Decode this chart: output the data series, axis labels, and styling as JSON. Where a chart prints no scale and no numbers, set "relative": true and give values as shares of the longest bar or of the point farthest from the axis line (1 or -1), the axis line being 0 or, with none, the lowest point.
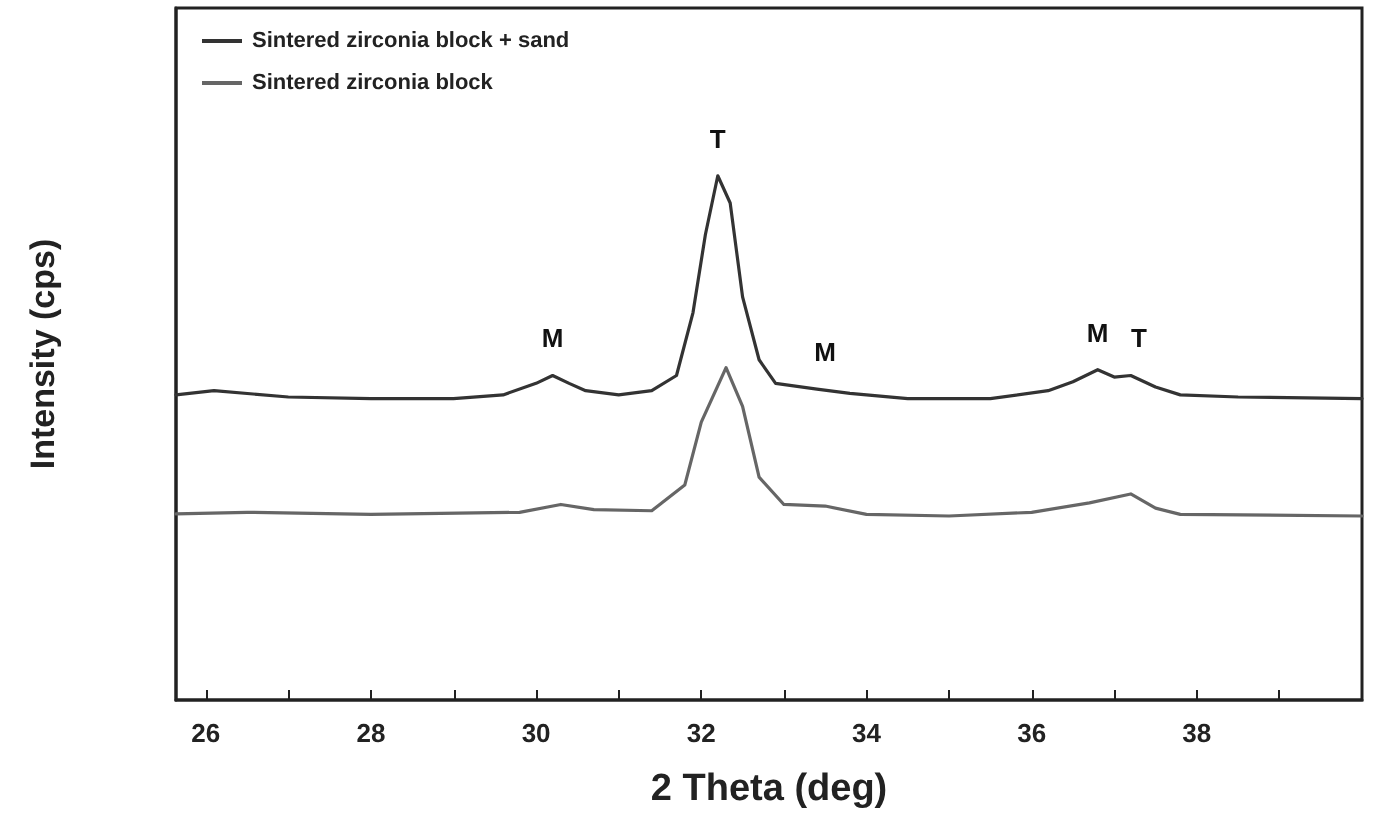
{
  "chart_data": {
    "type": "line",
    "relative": true,
    "xlabel": "2 Theta (deg)",
    "ylabel": "Intensity (cps)",
    "xlim": [
      25.64,
      40
    ],
    "xticks": [
      26,
      {
        "value": 27,
        "label": null
      },
      28,
      {
        "value": 29,
        "label": null
      },
      30,
      {
        "value": 31,
        "label": null
      },
      32,
      {
        "value": 33,
        "label": null
      },
      34,
      {
        "value": 35,
        "label": null
      },
      36,
      {
        "value": 37,
        "label": null
      },
      38,
      {
        "value": 39,
        "label": null
      }
    ],
    "legend": "top left",
    "grid": false,
    "marker": "none",
    "line_style": "solid",
    "series": [
      {
        "name": "Sintered zirconia block + sand",
        "color": "#333333",
        "x": [
          25.64,
          26.1,
          27,
          28,
          29,
          29.6,
          30.0,
          30.2,
          30.4,
          30.6,
          31,
          31.4,
          31.7,
          31.9,
          32.05,
          32.2,
          32.35,
          32.5,
          32.7,
          32.9,
          33.4,
          33.8,
          34.5,
          35.5,
          36.2,
          36.5,
          36.8,
          37.0,
          37.2,
          37.5,
          37.8,
          38.5,
          40
        ],
        "values": [
          0.582,
          0.59,
          0.578,
          0.575,
          0.575,
          0.582,
          0.604,
          0.619,
          0.604,
          0.59,
          0.582,
          0.59,
          0.619,
          0.739,
          0.888,
          1.0,
          0.948,
          0.769,
          0.649,
          0.604,
          0.593,
          0.585,
          0.575,
          0.575,
          0.59,
          0.607,
          0.63,
          0.616,
          0.619,
          0.597,
          0.582,
          0.578,
          0.575
        ]
      },
      {
        "name": "Sintered zirconia block",
        "color": "#666666",
        "x": [
          25.64,
          26.5,
          28,
          29.8,
          30.3,
          30.7,
          31.4,
          31.8,
          32.0,
          32.3,
          32.5,
          32.7,
          33.0,
          33.5,
          34,
          35,
          36,
          36.7,
          37.2,
          37.5,
          37.8,
          40
        ],
        "values": [
          0.355,
          0.358,
          0.354,
          0.358,
          0.373,
          0.363,
          0.361,
          0.41,
          0.53,
          0.634,
          0.56,
          0.425,
          0.373,
          0.37,
          0.354,
          0.351,
          0.358,
          0.376,
          0.393,
          0.366,
          0.354,
          0.351
        ]
      }
    ],
    "annotations": [
      {
        "text": "M",
        "x": 30.2,
        "y": 0.619
      },
      {
        "text": "T",
        "x": 32.2,
        "y": 1.0
      },
      {
        "text": "M",
        "x": 33.5,
        "y": 0.593
      },
      {
        "text": "M",
        "x": 36.8,
        "y": 0.63
      },
      {
        "text": "T",
        "x": 37.3,
        "y": 0.619
      }
    ]
  }
}
